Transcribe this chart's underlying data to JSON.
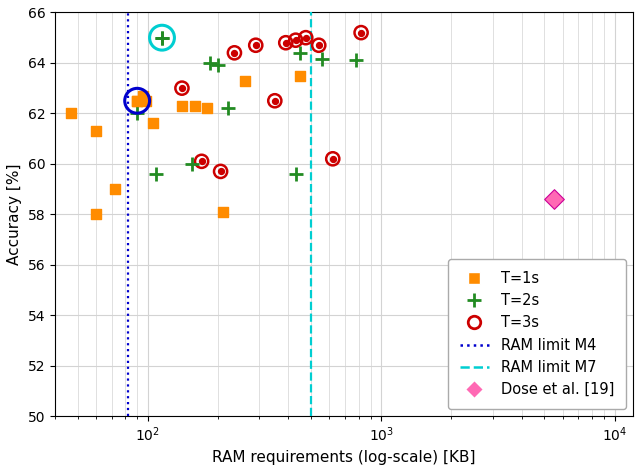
{
  "title": "",
  "xlabel": "RAM requirements (log-scale) [KB]",
  "ylabel": "Accuracy [%]",
  "ylim": [
    50,
    66
  ],
  "xlim_log": [
    40,
    12000
  ],
  "ram_limit_M4": 82,
  "ram_limit_M7": 500,
  "t1s_points": [
    [
      47,
      62.0
    ],
    [
      60,
      61.3
    ],
    [
      72,
      59.0
    ],
    [
      60,
      58.0
    ],
    [
      90,
      62.5
    ],
    [
      95,
      62.7
    ],
    [
      98,
      62.5
    ],
    [
      105,
      61.6
    ],
    [
      140,
      62.3
    ],
    [
      160,
      62.3
    ],
    [
      180,
      62.2
    ],
    [
      210,
      58.1
    ],
    [
      260,
      63.3
    ],
    [
      450,
      63.5
    ]
  ],
  "t2s_points": [
    [
      90,
      62.0
    ],
    [
      108,
      59.6
    ],
    [
      155,
      60.0
    ],
    [
      185,
      64.0
    ],
    [
      200,
      63.9
    ],
    [
      220,
      62.2
    ],
    [
      430,
      59.6
    ],
    [
      450,
      64.4
    ],
    [
      560,
      64.15
    ],
    [
      780,
      64.1
    ],
    [
      115,
      65.0
    ]
  ],
  "t3s_points": [
    [
      140,
      63.0
    ],
    [
      170,
      60.1
    ],
    [
      205,
      59.7
    ],
    [
      235,
      64.4
    ],
    [
      290,
      64.7
    ],
    [
      350,
      62.5
    ],
    [
      390,
      64.8
    ],
    [
      430,
      64.9
    ],
    [
      475,
      65.0
    ],
    [
      540,
      64.7
    ],
    [
      620,
      60.2
    ],
    [
      820,
      65.2
    ]
  ],
  "dose_point": [
    5500,
    58.6
  ],
  "highlighted_t2s": [
    115,
    65.0
  ],
  "highlighted_t1s": [
    90,
    62.5
  ],
  "color_t1s": "#FF8C00",
  "color_t2s": "#228B22",
  "color_t3s": "#CC0000",
  "color_dose": "#FF69B4",
  "color_M4": "#0000CD",
  "color_M7": "#00CED1",
  "legend_fontsize": 10.5,
  "tick_fontsize": 10,
  "label_fontsize": 11,
  "figsize": [
    6.4,
    4.72
  ],
  "dpi": 100
}
